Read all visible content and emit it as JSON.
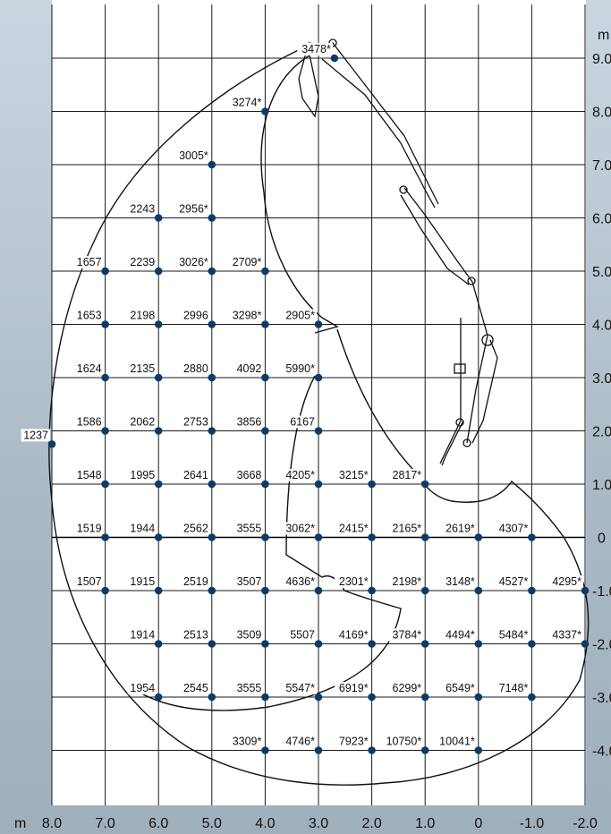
{
  "chart_data": {
    "type": "scatter",
    "title": "",
    "xlabel": "m",
    "ylabel": "m",
    "xlim": [
      8.0,
      -2.0
    ],
    "ylim": [
      -4.0,
      9.0
    ],
    "x_ticks": [
      "8.0",
      "7.0",
      "6.0",
      "5.0",
      "4.0",
      "3.0",
      "2.0",
      "1.0",
      "0",
      "-1.0",
      "-2.0"
    ],
    "y_ticks": [
      "9.0",
      "8.0",
      "7.0",
      "6.0",
      "5.0",
      "4.0",
      "3.0",
      "2.0",
      "1.0",
      "0",
      "-1.0",
      "-2.0",
      "-3.0",
      "-4.0"
    ],
    "grid": true,
    "points": [
      {
        "x": 2.7,
        "y": 9.0,
        "label": "3478*"
      },
      {
        "x": 4.0,
        "y": 8.0,
        "label": "3274*"
      },
      {
        "x": 5.0,
        "y": 7.0,
        "label": "3005*"
      },
      {
        "x": 6.0,
        "y": 6.0,
        "label": "2243"
      },
      {
        "x": 5.0,
        "y": 6.0,
        "label": "2956*"
      },
      {
        "x": 7.0,
        "y": 5.0,
        "label": "1657"
      },
      {
        "x": 6.0,
        "y": 5.0,
        "label": "2239"
      },
      {
        "x": 5.0,
        "y": 5.0,
        "label": "3026*"
      },
      {
        "x": 4.0,
        "y": 5.0,
        "label": "2709*"
      },
      {
        "x": 7.0,
        "y": 4.0,
        "label": "1653"
      },
      {
        "x": 6.0,
        "y": 4.0,
        "label": "2198"
      },
      {
        "x": 5.0,
        "y": 4.0,
        "label": "2996"
      },
      {
        "x": 4.0,
        "y": 4.0,
        "label": "3298*"
      },
      {
        "x": 3.0,
        "y": 4.0,
        "label": "2905*"
      },
      {
        "x": 7.0,
        "y": 3.0,
        "label": "1624"
      },
      {
        "x": 6.0,
        "y": 3.0,
        "label": "2135"
      },
      {
        "x": 5.0,
        "y": 3.0,
        "label": "2880"
      },
      {
        "x": 4.0,
        "y": 3.0,
        "label": "4092"
      },
      {
        "x": 3.0,
        "y": 3.0,
        "label": "5990*"
      },
      {
        "x": 8.0,
        "y": 1.75,
        "label": "1237"
      },
      {
        "x": 7.0,
        "y": 2.0,
        "label": "1586"
      },
      {
        "x": 6.0,
        "y": 2.0,
        "label": "2062"
      },
      {
        "x": 5.0,
        "y": 2.0,
        "label": "2753"
      },
      {
        "x": 4.0,
        "y": 2.0,
        "label": "3856"
      },
      {
        "x": 3.0,
        "y": 2.0,
        "label": "6167"
      },
      {
        "x": 7.0,
        "y": 1.0,
        "label": "1548"
      },
      {
        "x": 6.0,
        "y": 1.0,
        "label": "1995"
      },
      {
        "x": 5.0,
        "y": 1.0,
        "label": "2641"
      },
      {
        "x": 4.0,
        "y": 1.0,
        "label": "3668"
      },
      {
        "x": 3.0,
        "y": 1.0,
        "label": "4205*"
      },
      {
        "x": 2.0,
        "y": 1.0,
        "label": "3215*"
      },
      {
        "x": 1.0,
        "y": 1.0,
        "label": "2817*"
      },
      {
        "x": 7.0,
        "y": 0.0,
        "label": "1519"
      },
      {
        "x": 6.0,
        "y": 0.0,
        "label": "1944"
      },
      {
        "x": 5.0,
        "y": 0.0,
        "label": "2562"
      },
      {
        "x": 4.0,
        "y": 0.0,
        "label": "3555"
      },
      {
        "x": 3.0,
        "y": 0.0,
        "label": "3062*"
      },
      {
        "x": 2.0,
        "y": 0.0,
        "label": "2415*"
      },
      {
        "x": 1.0,
        "y": 0.0,
        "label": "2165*"
      },
      {
        "x": 0.0,
        "y": 0.0,
        "label": "2619*"
      },
      {
        "x": -1.0,
        "y": 0.0,
        "label": "4307*"
      },
      {
        "x": 7.0,
        "y": -1.0,
        "label": "1507"
      },
      {
        "x": 6.0,
        "y": -1.0,
        "label": "1915"
      },
      {
        "x": 5.0,
        "y": -1.0,
        "label": "2519"
      },
      {
        "x": 4.0,
        "y": -1.0,
        "label": "3507"
      },
      {
        "x": 3.0,
        "y": -1.0,
        "label": "4636*"
      },
      {
        "x": 2.0,
        "y": -1.0,
        "label": "2301*"
      },
      {
        "x": 1.0,
        "y": -1.0,
        "label": "2198*"
      },
      {
        "x": 0.0,
        "y": -1.0,
        "label": "3148*"
      },
      {
        "x": -1.0,
        "y": -1.0,
        "label": "4527*"
      },
      {
        "x": -2.0,
        "y": -1.0,
        "label": "4295*"
      },
      {
        "x": 6.0,
        "y": -2.0,
        "label": "1914"
      },
      {
        "x": 5.0,
        "y": -2.0,
        "label": "2513"
      },
      {
        "x": 4.0,
        "y": -2.0,
        "label": "3509"
      },
      {
        "x": 3.0,
        "y": -2.0,
        "label": "5507"
      },
      {
        "x": 2.0,
        "y": -2.0,
        "label": "4169*"
      },
      {
        "x": 1.0,
        "y": -2.0,
        "label": "3784*"
      },
      {
        "x": 0.0,
        "y": -2.0,
        "label": "4494*"
      },
      {
        "x": -1.0,
        "y": -2.0,
        "label": "5484*"
      },
      {
        "x": -2.0,
        "y": -2.0,
        "label": "4337*"
      },
      {
        "x": 6.0,
        "y": -3.0,
        "label": "1954"
      },
      {
        "x": 5.0,
        "y": -3.0,
        "label": "2545"
      },
      {
        "x": 4.0,
        "y": -3.0,
        "label": "3555"
      },
      {
        "x": 3.0,
        "y": -3.0,
        "label": "5547*"
      },
      {
        "x": 2.0,
        "y": -3.0,
        "label": "6919*"
      },
      {
        "x": 1.0,
        "y": -3.0,
        "label": "6299*"
      },
      {
        "x": 0.0,
        "y": -3.0,
        "label": "6549*"
      },
      {
        "x": -1.0,
        "y": -3.0,
        "label": "7148*"
      },
      {
        "x": 4.0,
        "y": -4.0,
        "label": "3309*"
      },
      {
        "x": 3.0,
        "y": -4.0,
        "label": "4746*"
      },
      {
        "x": 2.0,
        "y": -4.0,
        "label": "7923*"
      },
      {
        "x": 1.0,
        "y": -4.0,
        "label": "10750*"
      },
      {
        "x": 0.0,
        "y": -4.0,
        "label": "10041*"
      }
    ]
  },
  "colors": {
    "point": "#0d3b66",
    "grid": "#1a1a1a",
    "panel": "#ffffff"
  },
  "crane_icon": "crane-boom-icon"
}
